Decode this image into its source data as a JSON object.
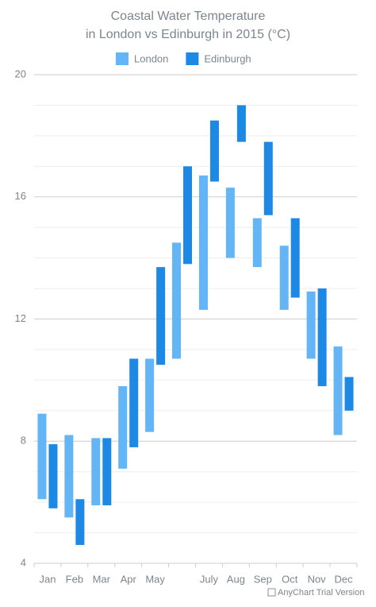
{
  "chart_data": {
    "type": "range-bar",
    "title": [
      "Coastal Water Temperature",
      "in London vs Edinburgh in 2015 (°C)"
    ],
    "categories": [
      "Jan",
      "Feb",
      "Mar",
      "Apr",
      "May",
      null,
      "July",
      "Aug",
      "Sep",
      "Oct",
      "Nov",
      "Dec"
    ],
    "series": [
      {
        "name": "London",
        "color": "#64b5f6",
        "low": [
          6.1,
          5.5,
          5.9,
          7.1,
          8.3,
          10.7,
          12.3,
          14.0,
          13.7,
          12.3,
          10.7,
          8.2
        ],
        "high": [
          8.9,
          8.2,
          8.1,
          9.8,
          10.7,
          14.5,
          16.7,
          16.3,
          15.3,
          14.4,
          12.9,
          11.1
        ]
      },
      {
        "name": "Edinburgh",
        "color": "#1e88e5",
        "low": [
          5.8,
          4.6,
          5.9,
          7.8,
          10.5,
          13.8,
          16.5,
          17.8,
          15.4,
          12.7,
          9.8,
          9.0
        ],
        "high": [
          7.9,
          6.1,
          8.1,
          10.7,
          13.7,
          17.0,
          18.5,
          19.0,
          17.8,
          15.3,
          13.0,
          10.1
        ]
      }
    ],
    "ylim": [
      4,
      20
    ],
    "yticks": [
      4,
      8,
      12,
      16,
      20
    ],
    "minor_yticks": [
      5,
      6,
      7,
      9,
      10,
      11,
      13,
      14,
      15,
      17,
      18,
      19
    ],
    "grid": true,
    "legend": "top",
    "credits": "AnyChart Trial Version"
  }
}
